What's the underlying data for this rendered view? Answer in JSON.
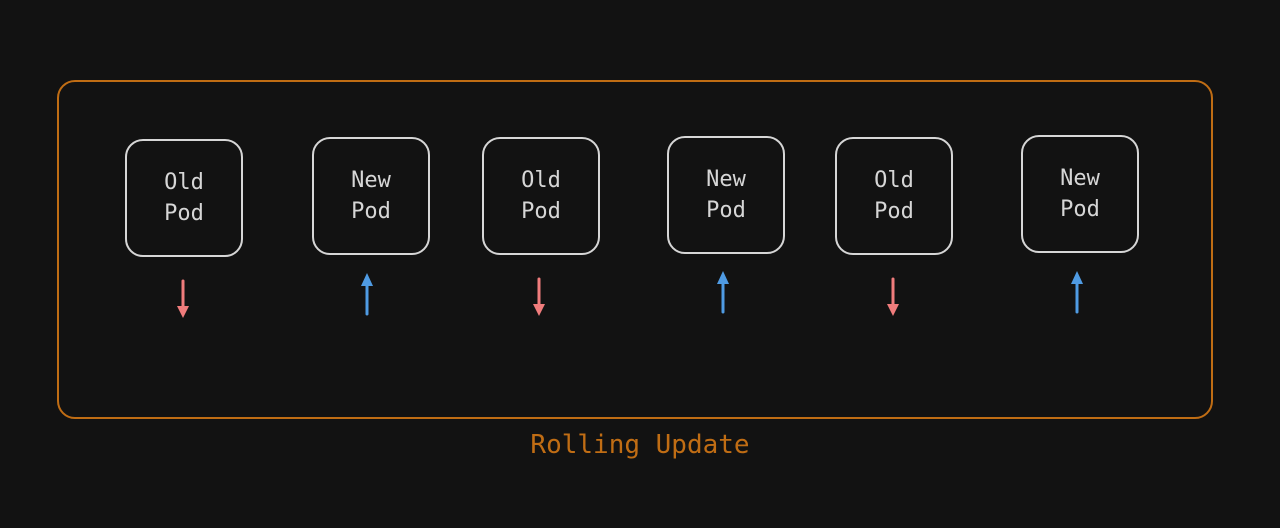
{
  "diagram": {
    "caption": "Rolling Update",
    "colors": {
      "frame": "#c06d14",
      "pod_border": "#d6d6d6",
      "arrow_down": "#f07c7c",
      "arrow_up": "#4f9be3"
    },
    "pods": [
      {
        "line1": "Old",
        "line2": "Pod",
        "arrow": "down"
      },
      {
        "line1": "New",
        "line2": "Pod",
        "arrow": "up"
      },
      {
        "line1": "Old",
        "line2": "Pod",
        "arrow": "down"
      },
      {
        "line1": "New",
        "line2": "Pod",
        "arrow": "up"
      },
      {
        "line1": "Old",
        "line2": "Pod",
        "arrow": "down"
      },
      {
        "line1": "New",
        "line2": "Pod",
        "arrow": "up"
      }
    ]
  }
}
